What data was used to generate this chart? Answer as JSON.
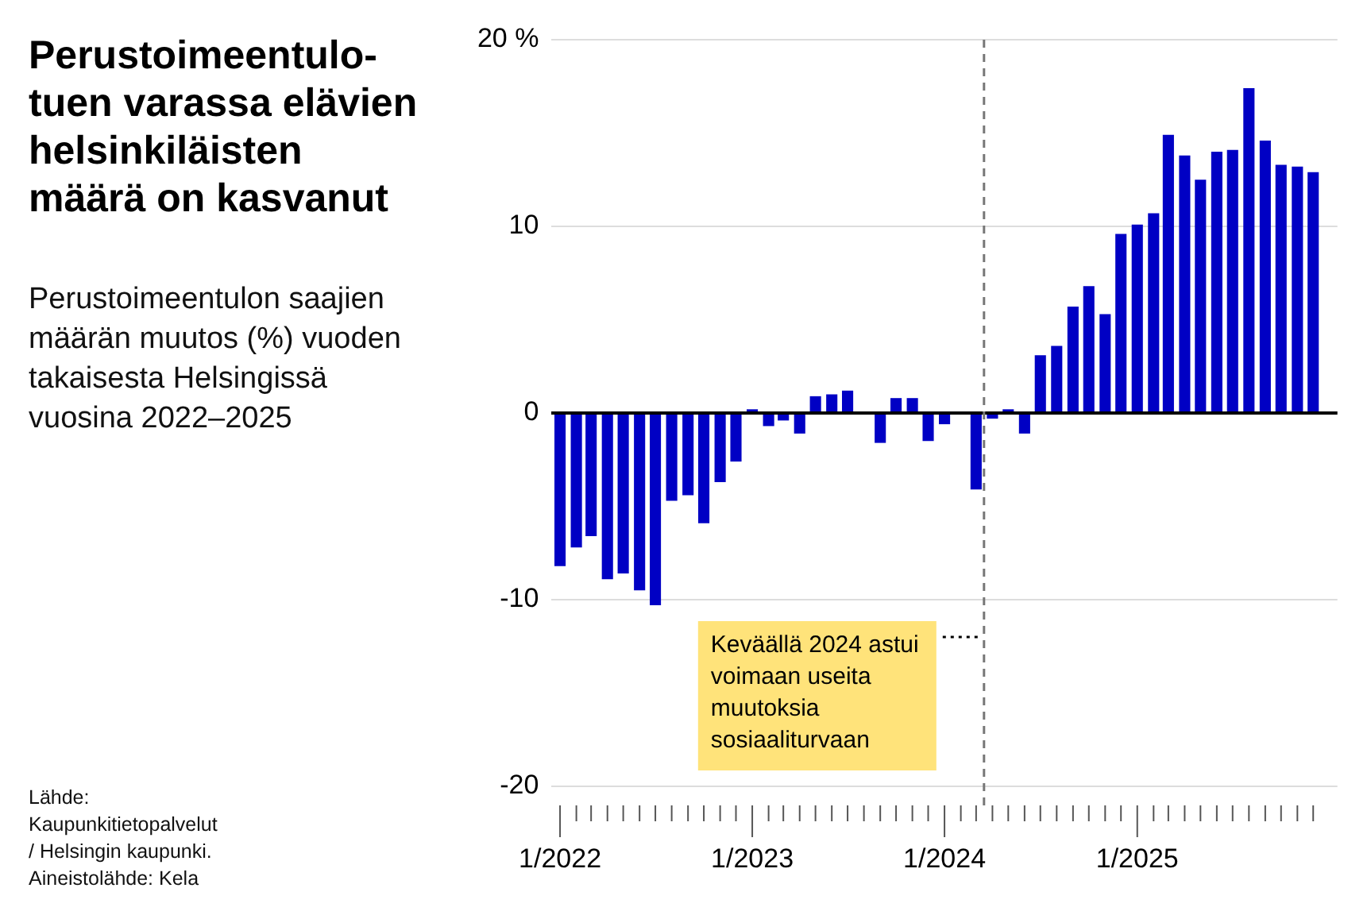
{
  "chart_data": {
    "type": "bar",
    "title": "Perustoimeentulo-\ntuen varassa elävien\nhelsinkiläisten\nmäärä on kasvanut",
    "subtitle": "Perustoimeentulon saajien määrän muutos (%) vuoden takaisesta Helsingissä vuosina 2022–2025",
    "x": [
      "2022-01",
      "2022-02",
      "2022-03",
      "2022-04",
      "2022-05",
      "2022-06",
      "2022-07",
      "2022-08",
      "2022-09",
      "2022-10",
      "2022-11",
      "2022-12",
      "2023-01",
      "2023-02",
      "2023-03",
      "2023-04",
      "2023-05",
      "2023-06",
      "2023-07",
      "2023-08",
      "2023-09",
      "2023-10",
      "2023-11",
      "2023-12",
      "2024-01",
      "2024-02",
      "2024-03",
      "2024-04",
      "2024-05",
      "2024-06",
      "2024-07",
      "2024-08",
      "2024-09",
      "2024-10",
      "2024-11",
      "2024-12",
      "2025-01",
      "2025-02",
      "2025-03",
      "2025-04",
      "2025-05",
      "2025-06",
      "2025-07",
      "2025-08",
      "2025-09",
      "2025-10",
      "2025-11",
      "2025-12"
    ],
    "values": [
      -8.2,
      -7.2,
      -6.6,
      -8.9,
      -8.6,
      -9.5,
      -10.3,
      -4.7,
      -4.4,
      -5.9,
      -3.7,
      -2.6,
      0.2,
      -0.7,
      -0.4,
      -1.1,
      0.9,
      1.0,
      1.2,
      0,
      -1.6,
      0.8,
      0.8,
      -1.5,
      -0.6,
      0,
      -4.1,
      -0.3,
      0.2,
      -1.1,
      3.1,
      3.6,
      5.7,
      6.8,
      5.3,
      9.6,
      10.1,
      10.7,
      14.9,
      13.8,
      12.5,
      14.0,
      14.1,
      17.4,
      14.6,
      13.3,
      13.2,
      12.9
    ],
    "color": "#0000c4",
    "ylim": [
      -20,
      20
    ],
    "yticks": [
      -20,
      -10,
      0,
      10,
      {
        "value": 20,
        "label": "20 %"
      }
    ],
    "xlim": [
      "2021-12-16",
      "2026-01-16"
    ],
    "xticks": [
      {
        "value": "2022-01",
        "label": "1/2022"
      },
      {
        "value": "2022-02",
        "label": null
      },
      {
        "value": "2022-03",
        "label": null
      },
      {
        "value": "2022-04",
        "label": null
      },
      {
        "value": "2022-05",
        "label": null
      },
      {
        "value": "2022-06",
        "label": null
      },
      {
        "value": "2022-07",
        "label": null
      },
      {
        "value": "2022-08",
        "label": null
      },
      {
        "value": "2022-09",
        "label": null
      },
      {
        "value": "2022-10",
        "label": null
      },
      {
        "value": "2022-11",
        "label": null
      },
      {
        "value": "2022-12",
        "label": null
      },
      {
        "value": "2023-01",
        "label": "1/2023"
      },
      {
        "value": "2023-02",
        "label": null
      },
      {
        "value": "2023-03",
        "label": null
      },
      {
        "value": "2023-04",
        "label": null
      },
      {
        "value": "2023-05",
        "label": null
      },
      {
        "value": "2023-06",
        "label": null
      },
      {
        "value": "2023-07",
        "label": null
      },
      {
        "value": "2023-08",
        "label": null
      },
      {
        "value": "2023-09",
        "label": null
      },
      {
        "value": "2023-10",
        "label": null
      },
      {
        "value": "2023-11",
        "label": null
      },
      {
        "value": "2023-12",
        "label": null
      },
      {
        "value": "2024-01",
        "label": "1/2024"
      },
      {
        "value": "2024-02",
        "label": null
      },
      {
        "value": "2024-03",
        "label": null
      },
      {
        "value": "2024-04",
        "label": null
      },
      {
        "value": "2024-05",
        "label": null
      },
      {
        "value": "2024-06",
        "label": null
      },
      {
        "value": "2024-07",
        "label": null
      },
      {
        "value": "2024-08",
        "label": null
      },
      {
        "value": "2024-09",
        "label": null
      },
      {
        "value": "2024-10",
        "label": null
      },
      {
        "value": "2024-11",
        "label": null
      },
      {
        "value": "2024-12",
        "label": null
      },
      {
        "value": "2025-01",
        "label": "1/2025"
      },
      {
        "value": "2025-02",
        "label": null
      },
      {
        "value": "2025-03",
        "label": null
      },
      {
        "value": "2025-04",
        "label": null
      },
      {
        "value": "2025-05",
        "label": null
      },
      {
        "value": "2025-06",
        "label": null
      },
      {
        "value": "2025-07",
        "label": null
      },
      {
        "value": "2025-08",
        "label": null
      },
      {
        "value": "2025-09",
        "label": null
      },
      {
        "value": "2025-10",
        "label": null
      },
      {
        "value": "2025-11",
        "label": null
      },
      {
        "value": "2025-12",
        "label": null
      }
    ],
    "ref_lines": [
      {
        "axis": "x",
        "value": "2024-03-16",
        "color": "#777777",
        "line_style": "dashed"
      }
    ],
    "annotations": [
      {
        "text": "Keväällä 2024 astui voimaan useita muutoksia sosiaaliturvaan",
        "x": "2024-03-16",
        "y": -12
      },
      "Lähde:\nKaupunkitietopalvelut\n/ Helsingin kaupunki.\nAineistolähde: Kela"
    ],
    "grid": "y",
    "legend": false
  }
}
